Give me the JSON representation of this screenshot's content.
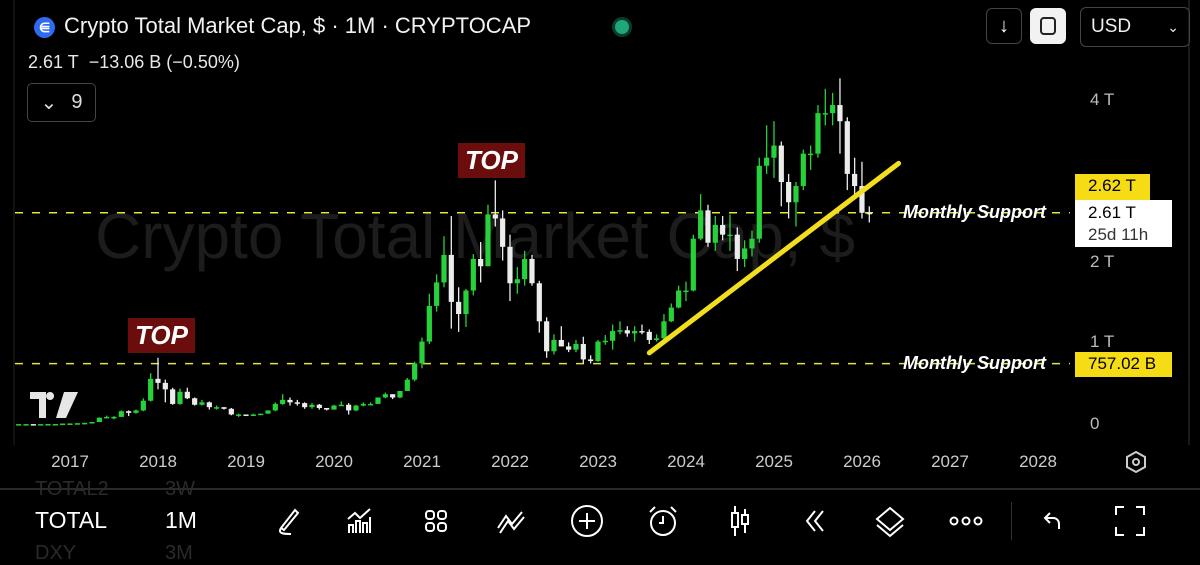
{
  "header": {
    "title": "Crypto Total Market Cap, $ · 1M · CRYPTOCAP",
    "last": "2.61 T",
    "change": "−13.06 B (−0.50%)",
    "indicators_count": "9",
    "currency": "USD",
    "market_status": "open"
  },
  "watermark": "Crypto Total Market Cap, $",
  "annotations": {
    "top_label": "TOP",
    "support_label": "Monthly Support"
  },
  "price_tags": {
    "upper_support": "2.62 T",
    "last_price": "2.61 T",
    "countdown": "25d 11h",
    "lower_support": "757.02 B"
  },
  "toolbar": {
    "symbol": "TOTAL",
    "interval": "1M",
    "ghost_above": [
      "TOTAL2",
      "3W"
    ],
    "ghost_below": [
      "DXY",
      "3M"
    ]
  },
  "colors": {
    "up": "#27d13a",
    "down": "#ececec",
    "support_line": "#e8e23a",
    "trendline": "#f2de1c",
    "top_bg": "#6b0d0d",
    "tag_yellow": "#f5dc14"
  },
  "chart_data": {
    "type": "candlestick",
    "title": "Crypto Total Market Cap, $",
    "interval": "1M",
    "unit": "T (USD trillions)",
    "y_ticks": [
      "0",
      "1 T",
      "2 T",
      "4 T"
    ],
    "y_tick_values": [
      0,
      1,
      2,
      4
    ],
    "ylim": [
      0,
      4.3
    ],
    "x_ticks": [
      "2017",
      "2018",
      "2019",
      "2020",
      "2021",
      "2022",
      "2023",
      "2024",
      "2025",
      "2026",
      "2027",
      "2028"
    ],
    "xlim": [
      "2016-06",
      "2028-06"
    ],
    "grid": false,
    "columns": [
      "month",
      "open",
      "high",
      "low",
      "close"
    ],
    "candles": [
      [
        "2016-06",
        0.01,
        0.012,
        0.009,
        0.011
      ],
      [
        "2016-07",
        0.011,
        0.012,
        0.01,
        0.011
      ],
      [
        "2016-08",
        0.011,
        0.012,
        0.01,
        0.01
      ],
      [
        "2016-09",
        0.01,
        0.011,
        0.01,
        0.011
      ],
      [
        "2016-10",
        0.011,
        0.012,
        0.011,
        0.012
      ],
      [
        "2016-11",
        0.012,
        0.013,
        0.011,
        0.012
      ],
      [
        "2016-12",
        0.012,
        0.018,
        0.012,
        0.018
      ],
      [
        "2017-01",
        0.018,
        0.02,
        0.016,
        0.019
      ],
      [
        "2017-02",
        0.019,
        0.022,
        0.018,
        0.022
      ],
      [
        "2017-03",
        0.022,
        0.028,
        0.02,
        0.026
      ],
      [
        "2017-04",
        0.026,
        0.038,
        0.025,
        0.037
      ],
      [
        "2017-05",
        0.037,
        0.095,
        0.036,
        0.09
      ],
      [
        "2017-06",
        0.09,
        0.116,
        0.08,
        0.1
      ],
      [
        "2017-07",
        0.1,
        0.11,
        0.07,
        0.1
      ],
      [
        "2017-08",
        0.1,
        0.18,
        0.1,
        0.17
      ],
      [
        "2017-09",
        0.17,
        0.18,
        0.11,
        0.15
      ],
      [
        "2017-10",
        0.15,
        0.19,
        0.14,
        0.18
      ],
      [
        "2017-11",
        0.18,
        0.33,
        0.17,
        0.3
      ],
      [
        "2017-12",
        0.3,
        0.64,
        0.29,
        0.57
      ],
      [
        "2018-01",
        0.57,
        0.83,
        0.44,
        0.52
      ],
      [
        "2018-02",
        0.52,
        0.56,
        0.28,
        0.44
      ],
      [
        "2018-03",
        0.44,
        0.46,
        0.25,
        0.26
      ],
      [
        "2018-04",
        0.26,
        0.45,
        0.25,
        0.41
      ],
      [
        "2018-05",
        0.41,
        0.46,
        0.32,
        0.33
      ],
      [
        "2018-06",
        0.33,
        0.34,
        0.24,
        0.25
      ],
      [
        "2018-07",
        0.25,
        0.31,
        0.24,
        0.28
      ],
      [
        "2018-08",
        0.28,
        0.29,
        0.19,
        0.22
      ],
      [
        "2018-09",
        0.22,
        0.24,
        0.19,
        0.22
      ],
      [
        "2018-10",
        0.22,
        0.22,
        0.19,
        0.2
      ],
      [
        "2018-11",
        0.2,
        0.21,
        0.12,
        0.13
      ],
      [
        "2018-12",
        0.13,
        0.14,
        0.1,
        0.13
      ],
      [
        "2019-01",
        0.13,
        0.13,
        0.11,
        0.12
      ],
      [
        "2019-02",
        0.12,
        0.14,
        0.11,
        0.13
      ],
      [
        "2019-03",
        0.13,
        0.14,
        0.13,
        0.14
      ],
      [
        "2019-04",
        0.14,
        0.18,
        0.14,
        0.18
      ],
      [
        "2019-05",
        0.18,
        0.28,
        0.17,
        0.26
      ],
      [
        "2019-06",
        0.26,
        0.38,
        0.25,
        0.31
      ],
      [
        "2019-07",
        0.31,
        0.34,
        0.24,
        0.28
      ],
      [
        "2019-08",
        0.28,
        0.31,
        0.24,
        0.27
      ],
      [
        "2019-09",
        0.27,
        0.28,
        0.2,
        0.22
      ],
      [
        "2019-10",
        0.22,
        0.27,
        0.2,
        0.25
      ],
      [
        "2019-11",
        0.25,
        0.26,
        0.19,
        0.21
      ],
      [
        "2019-12",
        0.21,
        0.21,
        0.18,
        0.19
      ],
      [
        "2020-01",
        0.19,
        0.25,
        0.19,
        0.24
      ],
      [
        "2020-02",
        0.24,
        0.29,
        0.24,
        0.25
      ],
      [
        "2020-03",
        0.25,
        0.27,
        0.13,
        0.18
      ],
      [
        "2020-04",
        0.18,
        0.25,
        0.17,
        0.24
      ],
      [
        "2020-05",
        0.24,
        0.28,
        0.23,
        0.26
      ],
      [
        "2020-06",
        0.26,
        0.28,
        0.25,
        0.26
      ],
      [
        "2020-07",
        0.26,
        0.34,
        0.26,
        0.34
      ],
      [
        "2020-08",
        0.34,
        0.4,
        0.33,
        0.38
      ],
      [
        "2020-09",
        0.38,
        0.38,
        0.32,
        0.34
      ],
      [
        "2020-10",
        0.34,
        0.42,
        0.33,
        0.42
      ],
      [
        "2020-11",
        0.42,
        0.58,
        0.42,
        0.56
      ],
      [
        "2020-12",
        0.56,
        0.78,
        0.54,
        0.76
      ],
      [
        "2021-01",
        0.76,
        1.08,
        0.7,
        1.03
      ],
      [
        "2021-02",
        1.03,
        1.62,
        1.0,
        1.47
      ],
      [
        "2021-03",
        1.47,
        1.86,
        1.4,
        1.76
      ],
      [
        "2021-04",
        1.76,
        2.33,
        1.7,
        2.1
      ],
      [
        "2021-05",
        2.1,
        2.58,
        1.19,
        1.52
      ],
      [
        "2021-06",
        1.52,
        1.7,
        1.15,
        1.37
      ],
      [
        "2021-07",
        1.37,
        1.68,
        1.21,
        1.66
      ],
      [
        "2021-08",
        1.66,
        2.11,
        1.6,
        2.05
      ],
      [
        "2021-09",
        2.05,
        2.26,
        1.76,
        1.96
      ],
      [
        "2021-10",
        1.96,
        2.72,
        1.96,
        2.6
      ],
      [
        "2021-11",
        2.6,
        3.02,
        2.45,
        2.55
      ],
      [
        "2021-12",
        2.55,
        2.65,
        2.03,
        2.2
      ],
      [
        "2022-01",
        2.2,
        2.35,
        1.53,
        1.75
      ],
      [
        "2022-02",
        1.75,
        1.95,
        1.62,
        1.8
      ],
      [
        "2022-03",
        1.8,
        2.15,
        1.72,
        2.05
      ],
      [
        "2022-04",
        2.05,
        2.1,
        1.72,
        1.75
      ],
      [
        "2022-05",
        1.75,
        1.78,
        1.14,
        1.28
      ],
      [
        "2022-06",
        1.28,
        1.33,
        0.83,
        0.91
      ],
      [
        "2022-07",
        0.91,
        1.12,
        0.87,
        1.05
      ],
      [
        "2022-08",
        1.05,
        1.22,
        0.97,
        0.97
      ],
      [
        "2022-09",
        0.97,
        1.02,
        0.9,
        0.93
      ],
      [
        "2022-10",
        0.93,
        1.05,
        0.9,
        1.0
      ],
      [
        "2022-11",
        1.0,
        1.09,
        0.76,
        0.81
      ],
      [
        "2022-12",
        0.81,
        0.86,
        0.76,
        0.79
      ],
      [
        "2023-01",
        0.79,
        1.05,
        0.78,
        1.03
      ],
      [
        "2023-02",
        1.03,
        1.11,
        0.99,
        1.04
      ],
      [
        "2023-03",
        1.04,
        1.24,
        0.93,
        1.16
      ],
      [
        "2023-04",
        1.16,
        1.28,
        1.12,
        1.17
      ],
      [
        "2023-05",
        1.17,
        1.22,
        1.09,
        1.13
      ],
      [
        "2023-06",
        1.13,
        1.22,
        1.03,
        1.16
      ],
      [
        "2023-07",
        1.16,
        1.24,
        1.12,
        1.15
      ],
      [
        "2023-08",
        1.15,
        1.18,
        1.0,
        1.05
      ],
      [
        "2023-09",
        1.05,
        1.12,
        1.03,
        1.07
      ],
      [
        "2023-10",
        1.07,
        1.37,
        1.05,
        1.28
      ],
      [
        "2023-11",
        1.28,
        1.5,
        1.27,
        1.45
      ],
      [
        "2023-12",
        1.45,
        1.72,
        1.44,
        1.66
      ],
      [
        "2024-01",
        1.66,
        1.77,
        1.53,
        1.66
      ],
      [
        "2024-02",
        1.66,
        2.35,
        1.65,
        2.3
      ],
      [
        "2024-03",
        2.3,
        2.85,
        2.28,
        2.65
      ],
      [
        "2024-04",
        2.65,
        2.72,
        2.2,
        2.25
      ],
      [
        "2024-05",
        2.25,
        2.58,
        2.15,
        2.47
      ],
      [
        "2024-06",
        2.47,
        2.58,
        2.28,
        2.35
      ],
      [
        "2024-07",
        2.35,
        2.6,
        2.15,
        2.35
      ],
      [
        "2024-08",
        2.35,
        2.44,
        1.9,
        2.05
      ],
      [
        "2024-09",
        2.05,
        2.28,
        1.95,
        2.18
      ],
      [
        "2024-10",
        2.18,
        2.4,
        2.08,
        2.3
      ],
      [
        "2024-11",
        2.3,
        3.3,
        2.25,
        3.2
      ],
      [
        "2024-12",
        3.2,
        3.7,
        3.1,
        3.3
      ],
      [
        "2025-01",
        3.3,
        3.75,
        3.05,
        3.45
      ],
      [
        "2025-02",
        3.45,
        3.5,
        2.7,
        3.0
      ],
      [
        "2025-03",
        3.0,
        3.1,
        2.55,
        2.75
      ],
      [
        "2025-04",
        2.75,
        3.0,
        2.45,
        2.95
      ],
      [
        "2025-05",
        2.95,
        3.4,
        2.9,
        3.35
      ],
      [
        "2025-06",
        3.35,
        3.45,
        3.15,
        3.35
      ],
      [
        "2025-07",
        3.35,
        3.95,
        3.3,
        3.85
      ],
      [
        "2025-08",
        3.85,
        4.15,
        3.7,
        3.85
      ],
      [
        "2025-09",
        3.85,
        4.1,
        3.7,
        3.95
      ],
      [
        "2025-10",
        3.95,
        4.28,
        3.35,
        3.75
      ],
      [
        "2025-11",
        3.75,
        3.8,
        2.9,
        3.1
      ],
      [
        "2025-12",
        3.1,
        3.3,
        2.85,
        2.95
      ],
      [
        "2026-01",
        2.95,
        3.25,
        2.55,
        2.62
      ],
      [
        "2026-02",
        2.62,
        2.7,
        2.5,
        2.61
      ]
    ],
    "horizontal_lines": [
      {
        "value": 2.62,
        "label": "Monthly Support"
      },
      {
        "value": 0.757,
        "label": "Monthly Support"
      }
    ],
    "trendline": {
      "start": [
        "2023-08",
        0.89
      ],
      "end": [
        "2026-06",
        3.23
      ]
    },
    "top_markers": [
      "2018-01",
      "2021-11"
    ]
  }
}
